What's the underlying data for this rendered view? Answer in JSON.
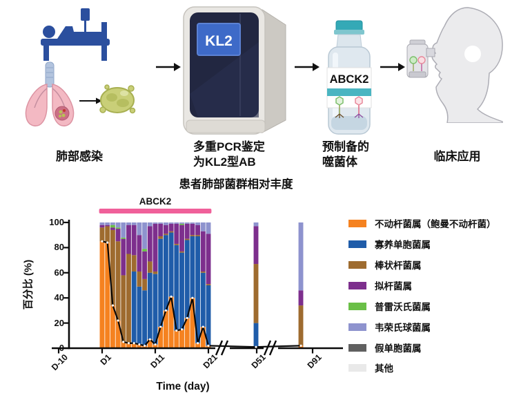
{
  "workflow": {
    "steps": [
      {
        "label": "肺部感染"
      },
      {
        "label": "多重PCR鉴定\n为KL2型AB",
        "screen_text": "KL2"
      },
      {
        "label": "预制备的\n噬菌体",
        "vial_text": "ABCK2"
      },
      {
        "label": "临床应用"
      }
    ]
  },
  "chart": {
    "title": "患者肺部菌群相对丰度",
    "treatment_label": "ABCK2",
    "ylabel": "百分比 (%)",
    "xlabel": "Time (day)",
    "yticks": [
      "100",
      "80",
      "60",
      "40",
      "20",
      "0"
    ],
    "xticklabels": [
      "D-10",
      "D1",
      "D11",
      "D21",
      "D51",
      "D91"
    ]
  },
  "chart_data": {
    "type": "stacked-bar-with-line",
    "title": "患者肺部菌群相对丰度",
    "xlabel": "Time (day)",
    "ylabel": "百分比 (%)",
    "ylim": [
      0,
      100
    ],
    "x_days": [
      1,
      2,
      3,
      4,
      5,
      6,
      7,
      8,
      9,
      10,
      11,
      12,
      13,
      14,
      15,
      16,
      17,
      18,
      19,
      20,
      21,
      51,
      91
    ],
    "xticks_days": [
      -10,
      1,
      11,
      21,
      51,
      91
    ],
    "axis_breaks_after_days": [
      21,
      51
    ],
    "treatment": {
      "label": "ABCK2",
      "from_day": 1,
      "to_day": 21,
      "color": "#F0609A"
    },
    "series": [
      {
        "name": "不动杆菌属（鲍曼不动杆菌）",
        "color": "#F58220",
        "values": [
          85,
          84,
          34,
          22,
          5,
          4,
          4,
          3,
          2,
          7,
          3,
          17,
          30,
          41,
          14,
          15,
          24,
          40,
          4,
          17,
          2,
          1,
          2
        ]
      },
      {
        "name": "寡养单胞菌属",
        "color": "#1F5CA9",
        "values": [
          0,
          0,
          0,
          0,
          0,
          0,
          57,
          46,
          44,
          53,
          56,
          70,
          60,
          51,
          68,
          61,
          62,
          49,
          85,
          43,
          48,
          19,
          0
        ]
      },
      {
        "name": "棒状杆菌属",
        "color": "#9E6B2F",
        "values": [
          11,
          13,
          60,
          63,
          53,
          71,
          13,
          12,
          9,
          9,
          2,
          2,
          1,
          1,
          1,
          1,
          1,
          1,
          1,
          1,
          1,
          47,
          32
        ]
      },
      {
        "name": "拟杆菌属",
        "color": "#7D2F8D",
        "values": [
          2,
          1,
          2,
          10,
          29,
          23,
          24,
          29,
          22,
          28,
          38,
          10,
          7,
          6,
          16,
          21,
          12,
          9,
          8,
          32,
          40,
          30,
          12
        ]
      },
      {
        "name": "普雷沃氏菌属",
        "color": "#6ABF47",
        "values": [
          0,
          0,
          2,
          1,
          1,
          0,
          0,
          0,
          2,
          0,
          0,
          0,
          0,
          0,
          0,
          1,
          0,
          0,
          0,
          0,
          0,
          0,
          0
        ]
      },
      {
        "name": "韦荣氏球菌属",
        "color": "#8E93CE",
        "values": [
          2,
          2,
          2,
          4,
          12,
          2,
          2,
          10,
          21,
          3,
          1,
          1,
          2,
          1,
          1,
          1,
          1,
          1,
          2,
          7,
          9,
          3,
          54
        ]
      },
      {
        "name": "假单胞菌属",
        "color": "#606060",
        "values": [
          0,
          0,
          0,
          0,
          0,
          0,
          0,
          0,
          0,
          0,
          0,
          0,
          0,
          0,
          0,
          0,
          0,
          0,
          0,
          0,
          0,
          0,
          0
        ]
      },
      {
        "name": "其他",
        "color": "#E9E9E9",
        "values": [
          0,
          0,
          0,
          0,
          0,
          0,
          0,
          0,
          0,
          0,
          0,
          0,
          0,
          0,
          0,
          0,
          0,
          0,
          0,
          0,
          0,
          0,
          0
        ]
      }
    ],
    "overlay_line": {
      "tracks": "不动杆菌属（鲍曼不动杆菌）",
      "color": "#0a0a0a",
      "marker": "white-dot"
    }
  },
  "legend": {
    "items": [
      {
        "label": "不动杆菌属（鲍曼不动杆菌）",
        "color": "#F58220"
      },
      {
        "label": "寡养单胞菌属",
        "color": "#1F5CA9"
      },
      {
        "label": "棒状杆菌属",
        "color": "#9E6B2F"
      },
      {
        "label": "拟杆菌属",
        "color": "#7D2F8D"
      },
      {
        "label": "普雷沃氏菌属",
        "color": "#6ABF47"
      },
      {
        "label": "韦荣氏球菌属",
        "color": "#8E93CE"
      },
      {
        "label": "假单胞菌属",
        "color": "#606060"
      },
      {
        "label": "其他",
        "color": "#E9E9E9"
      }
    ]
  }
}
